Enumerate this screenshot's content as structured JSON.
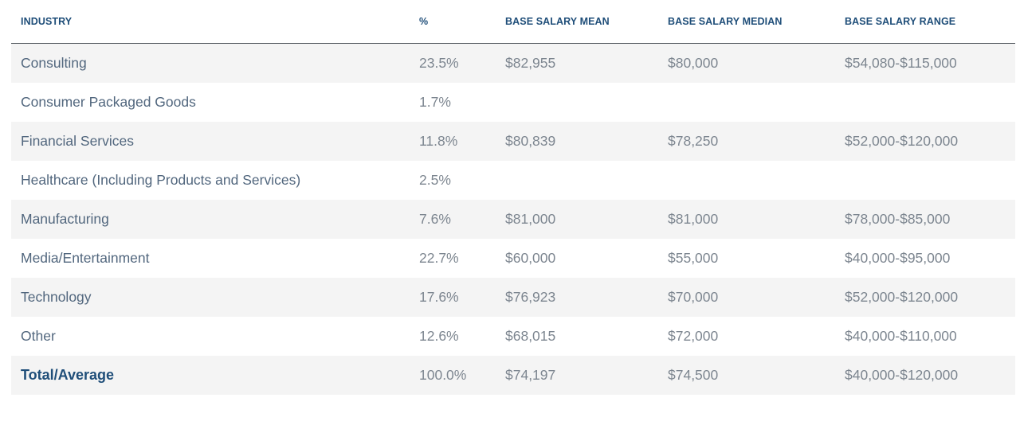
{
  "table": {
    "headers": {
      "industry": "INDUSTRY",
      "pct": "%",
      "mean": "BASE SALARY MEAN",
      "median": "BASE SALARY MEDIAN",
      "range": "BASE SALARY RANGE"
    },
    "rows": [
      {
        "industry": "Consulting",
        "pct": "23.5%",
        "mean": "$82,955",
        "median": "$80,000",
        "range": "$54,080-$115,000"
      },
      {
        "industry": "Consumer Packaged Goods",
        "pct": "1.7%",
        "mean": "",
        "median": "",
        "range": ""
      },
      {
        "industry": "Financial Services",
        "pct": "11.8%",
        "mean": "$80,839",
        "median": "$78,250",
        "range": "$52,000-$120,000"
      },
      {
        "industry": "Healthcare (Including Products and Services)",
        "pct": "2.5%",
        "mean": "",
        "median": "",
        "range": ""
      },
      {
        "industry": "Manufacturing",
        "pct": "7.6%",
        "mean": "$81,000",
        "median": "$81,000",
        "range": "$78,000-$85,000"
      },
      {
        "industry": "Media/Entertainment",
        "pct": "22.7%",
        "mean": "$60,000",
        "median": "$55,000",
        "range": "$40,000-$95,000"
      },
      {
        "industry": "Technology",
        "pct": "17.6%",
        "mean": "$76,923",
        "median": "$70,000",
        "range": "$52,000-$120,000"
      },
      {
        "industry": "Other",
        "pct": "12.6%",
        "mean": "$68,015",
        "median": "$72,000",
        "range": "$40,000-$110,000"
      },
      {
        "industry": "Total/Average",
        "pct": "100.0%",
        "mean": "$74,197",
        "median": "$74,500",
        "range": "$40,000-$120,000"
      }
    ]
  }
}
